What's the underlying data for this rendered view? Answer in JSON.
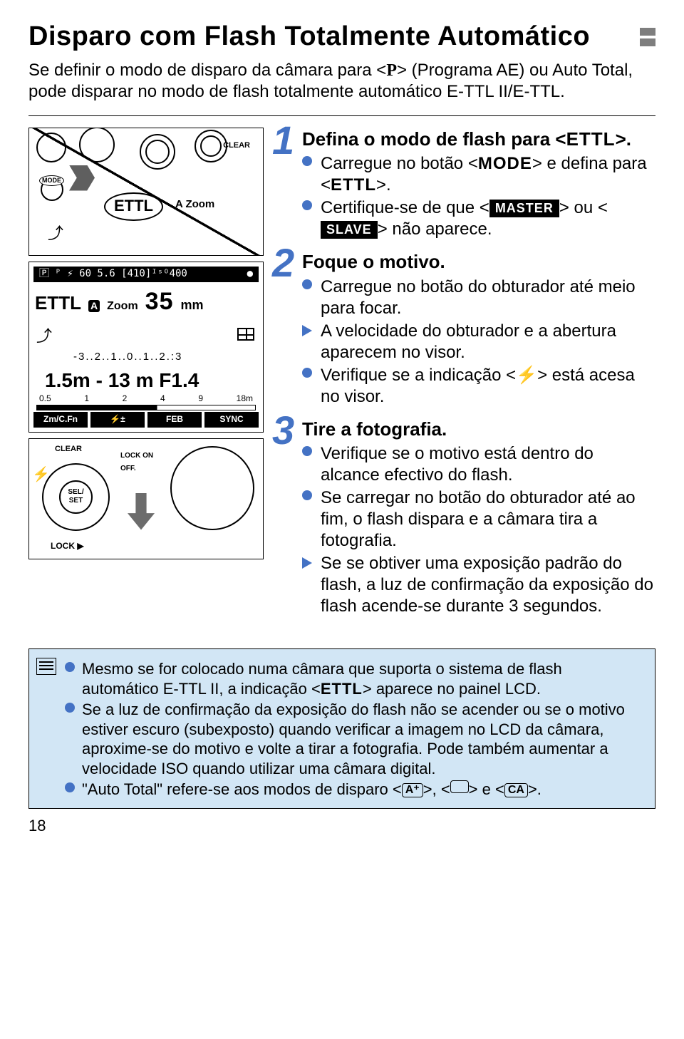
{
  "title": "Disparo com Flash Totalmente Automático",
  "intro": {
    "pre": "Se definir o modo de disparo da câmara para <",
    "p_symbol": "P",
    "post_p": "> (Programa AE) ou Auto Total, pode disparar no modo de flash totalmente automático E-TTL II/E-TTL."
  },
  "fig1": {
    "ettl": "ETTL",
    "clear": "CLEAR",
    "mode": "MODE",
    "az": "A Zoom",
    "bounce": "⤴"
  },
  "fig2": {
    "top_left": "🄿 ᴾ  ⚡  60  5.6   [410]ᴵˢᴼ400",
    "ettl": "ETTL",
    "zoom": "Zoom",
    "mm_val": "35",
    "mm": "mm",
    "head": "⤴",
    "scale": "-3..2..1..0..1..2.:3",
    "dist": "1.5m - 13 m    F1.4",
    "ruler": [
      "0.5",
      "1",
      "2",
      "4",
      "9",
      "18m"
    ],
    "btns": [
      "Zm/C.Fn",
      "⚡±",
      "FEB",
      "SYNC"
    ]
  },
  "fig3": {
    "clear": "CLEAR",
    "lock": "LOCK",
    "on": "ON",
    "off": "OFF.",
    "sel": "SEL/SET",
    "bolt": "⚡",
    "lockarrow": "LOCK ▶"
  },
  "steps": [
    {
      "num": "1",
      "title_pre": "Defina o modo de flash para <",
      "title_sym": "ETTL",
      "title_post": ">.",
      "subs": [
        {
          "t": "bullet",
          "html": "Carregue no botão <<span class='mode-strong'>MODE</span>> e defina para <<span class='ettl-strong'>ETTL</span>>."
        },
        {
          "t": "bullet",
          "html": "Certifique-se de que <<span class='tag-black'>MASTER</span>> ou <<span class='tag-black'>SLAVE</span>> não aparece."
        }
      ]
    },
    {
      "num": "2",
      "title": "Foque o motivo.",
      "subs": [
        {
          "t": "bullet",
          "html": "Carregue no botão do obturador até meio para focar."
        },
        {
          "t": "tri",
          "html": "A velocidade do obturador e a abertura aparecem no visor."
        },
        {
          "t": "bullet",
          "html": "Verifique se a indicação <<span class='bolt-icn'>⚡</span>> está acesa no visor."
        }
      ]
    },
    {
      "num": "3",
      "title": "Tire a fotografia.",
      "subs": [
        {
          "t": "bullet",
          "html": "Verifique se o motivo está dentro do alcance efectivo do flash."
        },
        {
          "t": "bullet",
          "html": "Se carregar no botão do obturador até ao fim, o flash dispara e a câmara tira a fotografia."
        },
        {
          "t": "tri",
          "html": "Se se obtiver uma exposição padrão do flash, a luz de confirmação da exposição do flash acende-se durante 3 segundos."
        }
      ]
    }
  ],
  "notes": [
    {
      "html": "Mesmo se for colocado numa câmara que suporta o sistema de flash automático E-TTL II, a indicação <<span class='ettl-strong'>ETTL</span>> aparece no painel LCD."
    },
    {
      "html": "Se a luz de confirmação da exposição do flash não se acender ou se o motivo estiver escuro (subexposto) quando verificar a imagem no LCD da câmara, aproxime-se do motivo e volte a tirar a fotografia. Pode também aumentar a velocidade ISO quando utilizar uma câmara digital."
    },
    {
      "html": "\"Auto Total\" refere-se aos modos de disparo <<span class='mode-icon'>A⁺</span>>, <<span class='mode-icon blank'></span>> e <<span class='mode-icon'>CA</span>>."
    }
  ],
  "page_number": "18",
  "colors": {
    "accent": "#4472c4",
    "note_bg": "#d2e6f5",
    "marker": "#7e7e7e"
  }
}
